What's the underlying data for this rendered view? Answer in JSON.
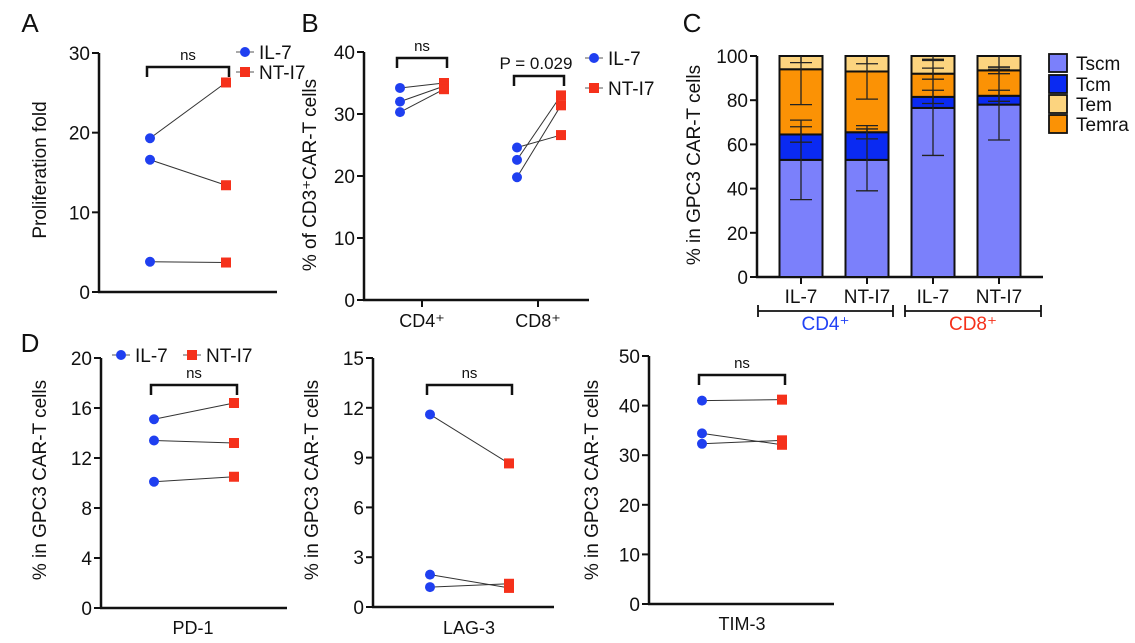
{
  "colors": {
    "il7": "#1f3ff0",
    "nti7": "#f5311b",
    "tscm": "#7b80fb",
    "tcm": "#0a2af2",
    "tem": "#fcd47f",
    "temra": "#fb9205",
    "cd4_label": "#2142f5",
    "cd8_label": "#f5311b"
  },
  "chart_data": [
    {
      "panel": "A",
      "type": "paired-scatter",
      "ylabel": "Proliferation fold",
      "ylim": [
        0,
        30
      ],
      "yticks": [
        0,
        10,
        20,
        30
      ],
      "legend": [
        "IL-7",
        "NT-I7"
      ],
      "legend_position": "top-right",
      "groups": [
        {
          "label": "",
          "sig": "ns",
          "pairs": [
            [
              19.3,
              26.3
            ],
            [
              16.6,
              13.4
            ],
            [
              3.8,
              3.7
            ]
          ]
        }
      ]
    },
    {
      "panel": "B",
      "type": "paired-scatter",
      "ylabel": "% of CD3⁺CAR-T cells",
      "ylim": [
        0,
        40
      ],
      "yticks": [
        0,
        10,
        20,
        30,
        40
      ],
      "legend": [
        "IL-7",
        "NT-I7"
      ],
      "legend_position": "top-right",
      "groups": [
        {
          "label": "CD4⁺",
          "sig": "ns",
          "pairs": [
            [
              34.2,
              35.0
            ],
            [
              32.0,
              34.5
            ],
            [
              30.3,
              34.0
            ]
          ]
        },
        {
          "label": "CD8⁺",
          "sig": "P = 0.029",
          "pairs": [
            [
              24.6,
              26.6
            ],
            [
              22.6,
              33.0
            ],
            [
              19.8,
              31.4
            ]
          ]
        }
      ]
    },
    {
      "panel": "C",
      "type": "stacked-bar",
      "ylabel": "%  in GPC3 CAR-T cells",
      "ylim": [
        0,
        100
      ],
      "yticks": [
        0,
        20,
        40,
        60,
        80,
        100
      ],
      "categories": [
        "IL-7",
        "NT-I7",
        "IL-7",
        "NT-I7"
      ],
      "category_groups": [
        {
          "label": "CD4⁺",
          "span": [
            0,
            1
          ]
        },
        {
          "label": "CD8⁺",
          "span": [
            2,
            3
          ]
        }
      ],
      "legend_position": "right",
      "series": [
        {
          "name": "Tscm",
          "values": [
            53,
            53,
            76.5,
            78
          ],
          "error": [
            18,
            14,
            21.5,
            16
          ]
        },
        {
          "name": "Tcm",
          "values": [
            11.5,
            12.5,
            5,
            4
          ],
          "error": [
            3.5,
            3,
            3,
            2.5
          ]
        },
        {
          "name": "Temra",
          "values": [
            29.5,
            27.5,
            10.5,
            11.5
          ],
          "error": [
            16,
            12.5,
            2.5,
            1.5
          ]
        },
        {
          "name": "Tem",
          "values": [
            6,
            7,
            8,
            6.5
          ],
          "error": [
            3,
            3.5,
            1.5,
            5
          ]
        }
      ],
      "legend_order": [
        "Tscm",
        "Tcm",
        "Tem",
        "Temra"
      ]
    },
    {
      "panel": "D",
      "type": "paired-scatter",
      "ylabel": "% in GPC3 CAR-T cells",
      "ylim": [
        0,
        20
      ],
      "yticks": [
        0,
        4,
        8,
        12,
        16,
        20
      ],
      "legend": [
        "IL-7",
        "NT-I7"
      ],
      "legend_position": "top",
      "groups": [
        {
          "label": "PD-1",
          "sig": "ns",
          "pairs": [
            [
              15.1,
              16.4
            ],
            [
              13.4,
              13.2
            ],
            [
              10.1,
              10.5
            ]
          ]
        }
      ]
    },
    {
      "panel": "",
      "type": "paired-scatter",
      "ylabel": "% in GPC3 CAR-T cells",
      "ylim": [
        0,
        15
      ],
      "yticks": [
        0,
        3,
        6,
        9,
        12,
        15
      ],
      "groups": [
        {
          "label": "LAG-3",
          "sig": "ns",
          "pairs": [
            [
              11.6,
              8.65
            ],
            [
              1.95,
              1.15
            ],
            [
              1.2,
              1.4
            ]
          ]
        }
      ]
    },
    {
      "panel": "",
      "type": "paired-scatter",
      "ylabel": "% in GPC3 CAR-T cells",
      "ylim": [
        0,
        50
      ],
      "yticks": [
        0,
        10,
        20,
        30,
        40,
        50
      ],
      "groups": [
        {
          "label": "TIM-3",
          "sig": "ns",
          "pairs": [
            [
              41.0,
              41.2
            ],
            [
              34.4,
              32.1
            ],
            [
              32.3,
              33.0
            ]
          ]
        }
      ]
    }
  ]
}
